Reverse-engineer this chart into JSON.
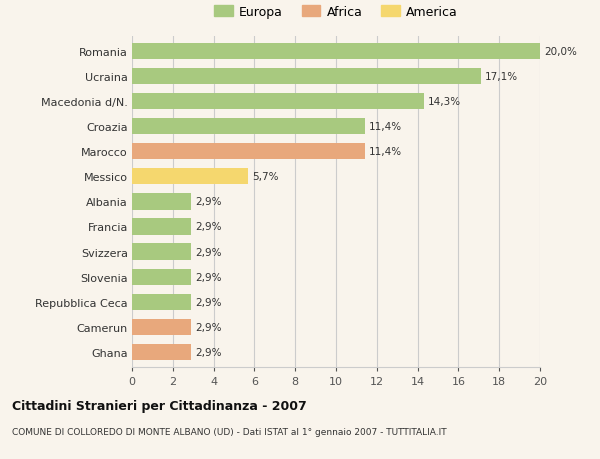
{
  "categories": [
    "Romania",
    "Ucraina",
    "Macedonia d/N.",
    "Croazia",
    "Marocco",
    "Messico",
    "Albania",
    "Francia",
    "Svizzera",
    "Slovenia",
    "Repubblica Ceca",
    "Camerun",
    "Ghana"
  ],
  "values": [
    20.0,
    17.1,
    14.3,
    11.4,
    11.4,
    5.7,
    2.9,
    2.9,
    2.9,
    2.9,
    2.9,
    2.9,
    2.9
  ],
  "labels": [
    "20,0%",
    "17,1%",
    "14,3%",
    "11,4%",
    "11,4%",
    "5,7%",
    "2,9%",
    "2,9%",
    "2,9%",
    "2,9%",
    "2,9%",
    "2,9%",
    "2,9%"
  ],
  "colors": [
    "#a8c97f",
    "#a8c97f",
    "#a8c97f",
    "#a8c97f",
    "#e8a87c",
    "#f5d76e",
    "#a8c97f",
    "#a8c97f",
    "#a8c97f",
    "#a8c97f",
    "#a8c97f",
    "#e8a87c",
    "#e8a87c"
  ],
  "legend": [
    {
      "label": "Europa",
      "color": "#a8c97f"
    },
    {
      "label": "Africa",
      "color": "#e8a87c"
    },
    {
      "label": "America",
      "color": "#f5d76e"
    }
  ],
  "title": "Cittadini Stranieri per Cittadinanza - 2007",
  "subtitle": "COMUNE DI COLLOREDO DI MONTE ALBANO (UD) - Dati ISTAT al 1° gennaio 2007 - TUTTITALIA.IT",
  "xlim": [
    0,
    20
  ],
  "xticks": [
    0,
    2,
    4,
    6,
    8,
    10,
    12,
    14,
    16,
    18,
    20
  ],
  "background_color": "#f9f4ec",
  "grid_color": "#cccccc"
}
